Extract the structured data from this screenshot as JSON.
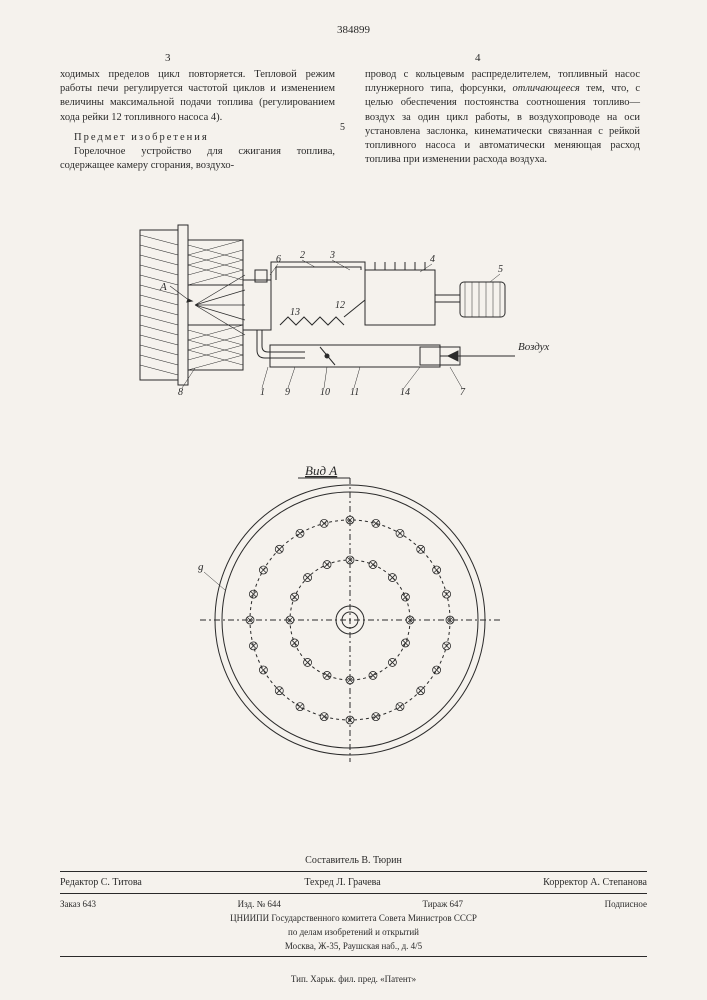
{
  "patent_number": "384899",
  "col_left_num": "3",
  "col_right_num": "4",
  "line_marker": "5",
  "left_col": {
    "p1": "ходимых пределов цикл повторяется. Тепловой режим работы печи регулируется частотой циклов и изменением величины максимальной подачи топлива (регулированием хода рейки 12 топливного насоса 4).",
    "section_title": "Предмет изобретения",
    "p2": "Горелочное устройство для сжигания топлива, содержащее камеру сгорания, воздухо-"
  },
  "right_col": {
    "p1_a": "провод с кольцевым распределителем, топливный насос плунжерного типа, форсунки, ",
    "p1_b": "отличающееся",
    "p1_c": " тем, что, с целью обеспечения постоянства соотношения топливо—воздух за один цикл работы, в воздухопроводе на оси установлена заслонка, кинематически связанная с рейкой топливного насоса и автоматически меняющая расход топлива при изменении расхода воздуха."
  },
  "figure": {
    "view_label": "Вид A",
    "air_label": "Воздух",
    "marker_A": "A",
    "marker_g": "g",
    "callouts": [
      "1",
      "2",
      "3",
      "4",
      "5",
      "6",
      "7",
      "8",
      "9",
      "10",
      "11",
      "12",
      "13",
      "14"
    ]
  },
  "footer": {
    "sostavitel": "Составитель В. Тюрин",
    "redaktor": "Редактор С. Титова",
    "tehred": "Техред Л. Грачева",
    "korrektor": "Корректор А. Степанова",
    "zakaz": "Заказ 643",
    "izd": "Изд. № 644",
    "tirazh": "Тираж 647",
    "podpisnoe": "Подписное",
    "org1": "ЦНИИПИ Государственного комитета Совета Министров СССР",
    "org2": "по делам изобретений и открытий",
    "address": "Москва, Ж-35, Раушская наб., д. 4/5",
    "typ": "Тип. Харьк. фил. пред. «Патент»"
  },
  "colors": {
    "page_bg": "#f5f2ed",
    "ink": "#2a2a2a",
    "line": "#2a2a2a"
  }
}
